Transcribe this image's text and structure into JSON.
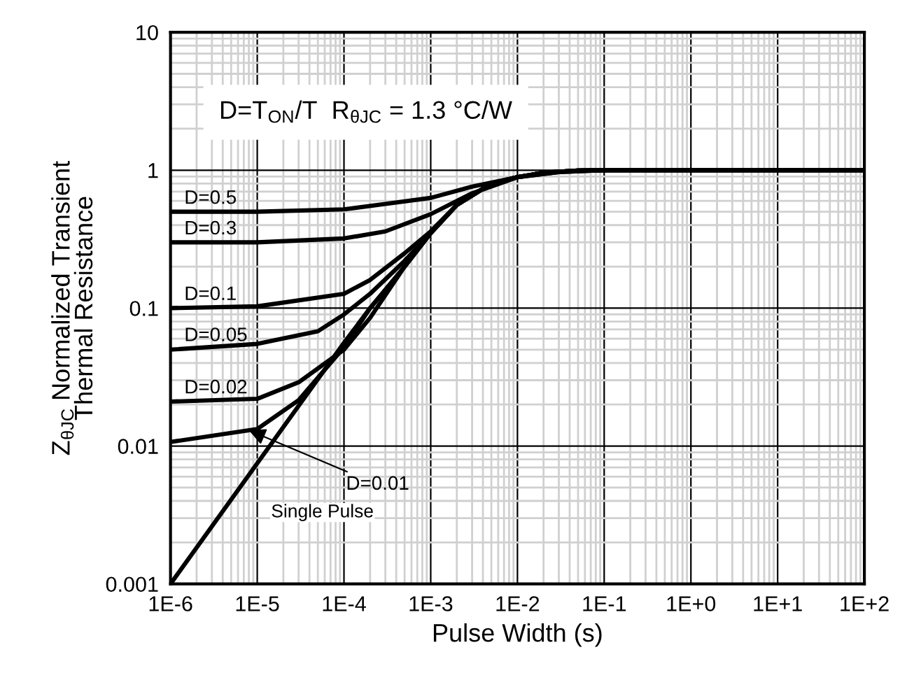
{
  "chart_data": {
    "type": "line",
    "xlabel": "Pulse Width (s)",
    "ylabel": "Z$_{θJC}$ Normalized Transient\nThermal Resistance",
    "log": "xy",
    "grid": true,
    "legend": false,
    "marker": "none",
    "line_style": "solid",
    "xlim": [
      1e-06,
      100
    ],
    "ylim": [
      0.001,
      10
    ],
    "xticks": [
      {
        "value": 1e-06,
        "label": "1E-6"
      },
      {
        "value": 1e-05,
        "label": "1E-5"
      },
      {
        "value": 0.0001,
        "label": "1E-4"
      },
      {
        "value": 0.001,
        "label": "1E-3"
      },
      {
        "value": 0.01,
        "label": "1E-2"
      },
      {
        "value": 0.1,
        "label": "1E-1"
      },
      {
        "value": 1,
        "label": "1E+0"
      },
      {
        "value": 10,
        "label": "1E+1"
      },
      {
        "value": 100,
        "label": "1E+2"
      }
    ],
    "yticks": [
      0.001,
      0.01,
      0.1,
      1,
      10
    ],
    "annotations": [
      "D=T$_{ON}$/T  R$_{θJC}$ = 1.3 °C/W"
    ],
    "series": [
      {
        "name": "D=0.5",
        "color": "#000000",
        "x": [
          1e-06,
          1e-05,
          0.0001,
          0.0003,
          0.001,
          0.003,
          0.01,
          0.03,
          0.1,
          100
        ],
        "values": [
          0.5,
          0.5,
          0.52,
          0.57,
          0.63,
          0.76,
          0.89,
          0.97,
          1,
          1
        ]
      },
      {
        "name": "D=0.3",
        "color": "#000000",
        "x": [
          1e-06,
          1e-05,
          0.0001,
          0.0003,
          0.001,
          0.003,
          0.01,
          0.03,
          0.1,
          100
        ],
        "values": [
          0.3,
          0.3,
          0.32,
          0.36,
          0.48,
          0.68,
          0.89,
          0.97,
          1,
          1
        ]
      },
      {
        "name": "D=0.1",
        "color": "#000000",
        "x": [
          1e-06,
          1e-05,
          0.0001,
          0.0002,
          0.0005,
          0.001,
          0.002,
          0.005,
          0.01,
          0.02,
          0.05,
          0.1,
          100
        ],
        "values": [
          0.1,
          0.103,
          0.127,
          0.16,
          0.25,
          0.36,
          0.56,
          0.8,
          0.89,
          0.96,
          0.995,
          1,
          1
        ]
      },
      {
        "name": "D=0.05",
        "color": "#000000",
        "x": [
          1e-06,
          1e-05,
          5e-05,
          0.0001,
          0.0002,
          0.0005,
          0.001,
          0.002,
          0.005,
          0.01,
          0.02,
          0.05,
          0.1,
          100
        ],
        "values": [
          0.05,
          0.055,
          0.068,
          0.09,
          0.127,
          0.22,
          0.35,
          0.56,
          0.8,
          0.89,
          0.96,
          0.995,
          1,
          1
        ]
      },
      {
        "name": "D=0.02",
        "color": "#000000",
        "x": [
          1e-06,
          1e-05,
          3e-05,
          0.0001,
          0.0002,
          0.0005,
          0.001,
          0.002,
          0.005,
          0.01,
          0.02,
          0.05,
          0.1,
          100
        ],
        "values": [
          0.021,
          0.022,
          0.029,
          0.05,
          0.085,
          0.2,
          0.35,
          0.56,
          0.8,
          0.89,
          0.96,
          0.995,
          1,
          1
        ]
      },
      {
        "name": "D=0.01",
        "color": "#000000",
        "x": [
          1e-06,
          1e-05,
          3e-05,
          0.0001,
          0.0002,
          0.0005,
          0.001,
          0.002,
          0.005,
          0.01,
          0.02,
          0.05,
          0.1,
          100
        ],
        "values": [
          0.0107,
          0.0133,
          0.0215,
          0.052,
          0.1,
          0.2,
          0.35,
          0.56,
          0.8,
          0.89,
          0.96,
          0.995,
          1,
          1
        ]
      },
      {
        "name": "Single Pulse",
        "color": "#000000",
        "x": [
          1e-06,
          1e-05,
          0.0001,
          0.0002,
          0.0005,
          0.001,
          0.002,
          0.005,
          0.01,
          0.02,
          0.05,
          0.1,
          100
        ],
        "values": [
          0.001,
          0.0075,
          0.056,
          0.1,
          0.2,
          0.35,
          0.56,
          0.8,
          0.89,
          0.96,
          0.995,
          1,
          1
        ]
      }
    ]
  }
}
